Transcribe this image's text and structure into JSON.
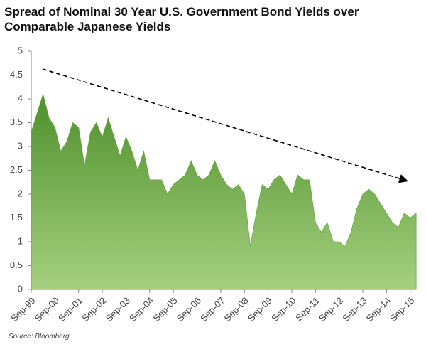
{
  "chart_data": {
    "type": "area",
    "title": "Spread of Nominal 30 Year U.S. Government Bond Yields over Comparable Japanese Yields",
    "source": "Source: Bloomberg",
    "x": [
      "Sep-99",
      "Dec-99",
      "Mar-00",
      "Jun-00",
      "Sep-00",
      "Dec-00",
      "Mar-01",
      "Jun-01",
      "Sep-01",
      "Dec-01",
      "Mar-02",
      "Jun-02",
      "Sep-02",
      "Dec-02",
      "Mar-03",
      "Jun-03",
      "Sep-03",
      "Dec-03",
      "Mar-04",
      "Jun-04",
      "Sep-04",
      "Dec-04",
      "Mar-05",
      "Jun-05",
      "Sep-05",
      "Dec-05",
      "Mar-06",
      "Jun-06",
      "Sep-06",
      "Dec-06",
      "Mar-07",
      "Jun-07",
      "Sep-07",
      "Dec-07",
      "Mar-08",
      "Jun-08",
      "Sep-08",
      "Dec-08",
      "Mar-09",
      "Jun-09",
      "Sep-09",
      "Dec-09",
      "Mar-10",
      "Jun-10",
      "Sep-10",
      "Dec-10",
      "Mar-11",
      "Jun-11",
      "Sep-11",
      "Dec-11",
      "Mar-12",
      "Jun-12",
      "Sep-12",
      "Dec-12",
      "Mar-13",
      "Jun-13",
      "Sep-13",
      "Dec-13",
      "Mar-14",
      "Jun-14",
      "Sep-14",
      "Dec-14",
      "Mar-15",
      "Jun-15",
      "Sep-15",
      "Dec-15"
    ],
    "values": [
      3.3,
      3.7,
      4.1,
      3.6,
      3.4,
      2.9,
      3.1,
      3.5,
      3.4,
      2.6,
      3.3,
      3.5,
      3.2,
      3.6,
      3.2,
      2.8,
      3.2,
      2.9,
      2.5,
      2.9,
      2.3,
      2.3,
      2.3,
      2.0,
      2.2,
      2.3,
      2.4,
      2.7,
      2.4,
      2.3,
      2.4,
      2.7,
      2.4,
      2.2,
      2.1,
      2.2,
      2.0,
      0.9,
      1.6,
      2.2,
      2.1,
      2.3,
      2.4,
      2.2,
      2.0,
      2.4,
      2.3,
      2.3,
      1.4,
      1.2,
      1.4,
      1.0,
      1.0,
      0.9,
      1.2,
      1.7,
      2.0,
      2.1,
      2.0,
      1.8,
      1.6,
      1.4,
      1.3,
      1.6,
      1.5,
      1.6
    ],
    "color": "#6aa844",
    "xticks": [
      "Sep-99",
      "Sep-00",
      "Sep-01",
      "Sep-02",
      "Sep-03",
      "Sep-04",
      "Sep-05",
      "Sep-06",
      "Sep-07",
      "Sep-08",
      "Sep-09",
      "Sep-10",
      "Sep-11",
      "Sep-12",
      "Sep-13",
      "Sep-14",
      "Sep-15"
    ],
    "ylim": [
      0,
      5
    ],
    "yticks": [
      0,
      0.5,
      1,
      1.5,
      2,
      2.5,
      3,
      3.5,
      4,
      4.5,
      5
    ]
  }
}
